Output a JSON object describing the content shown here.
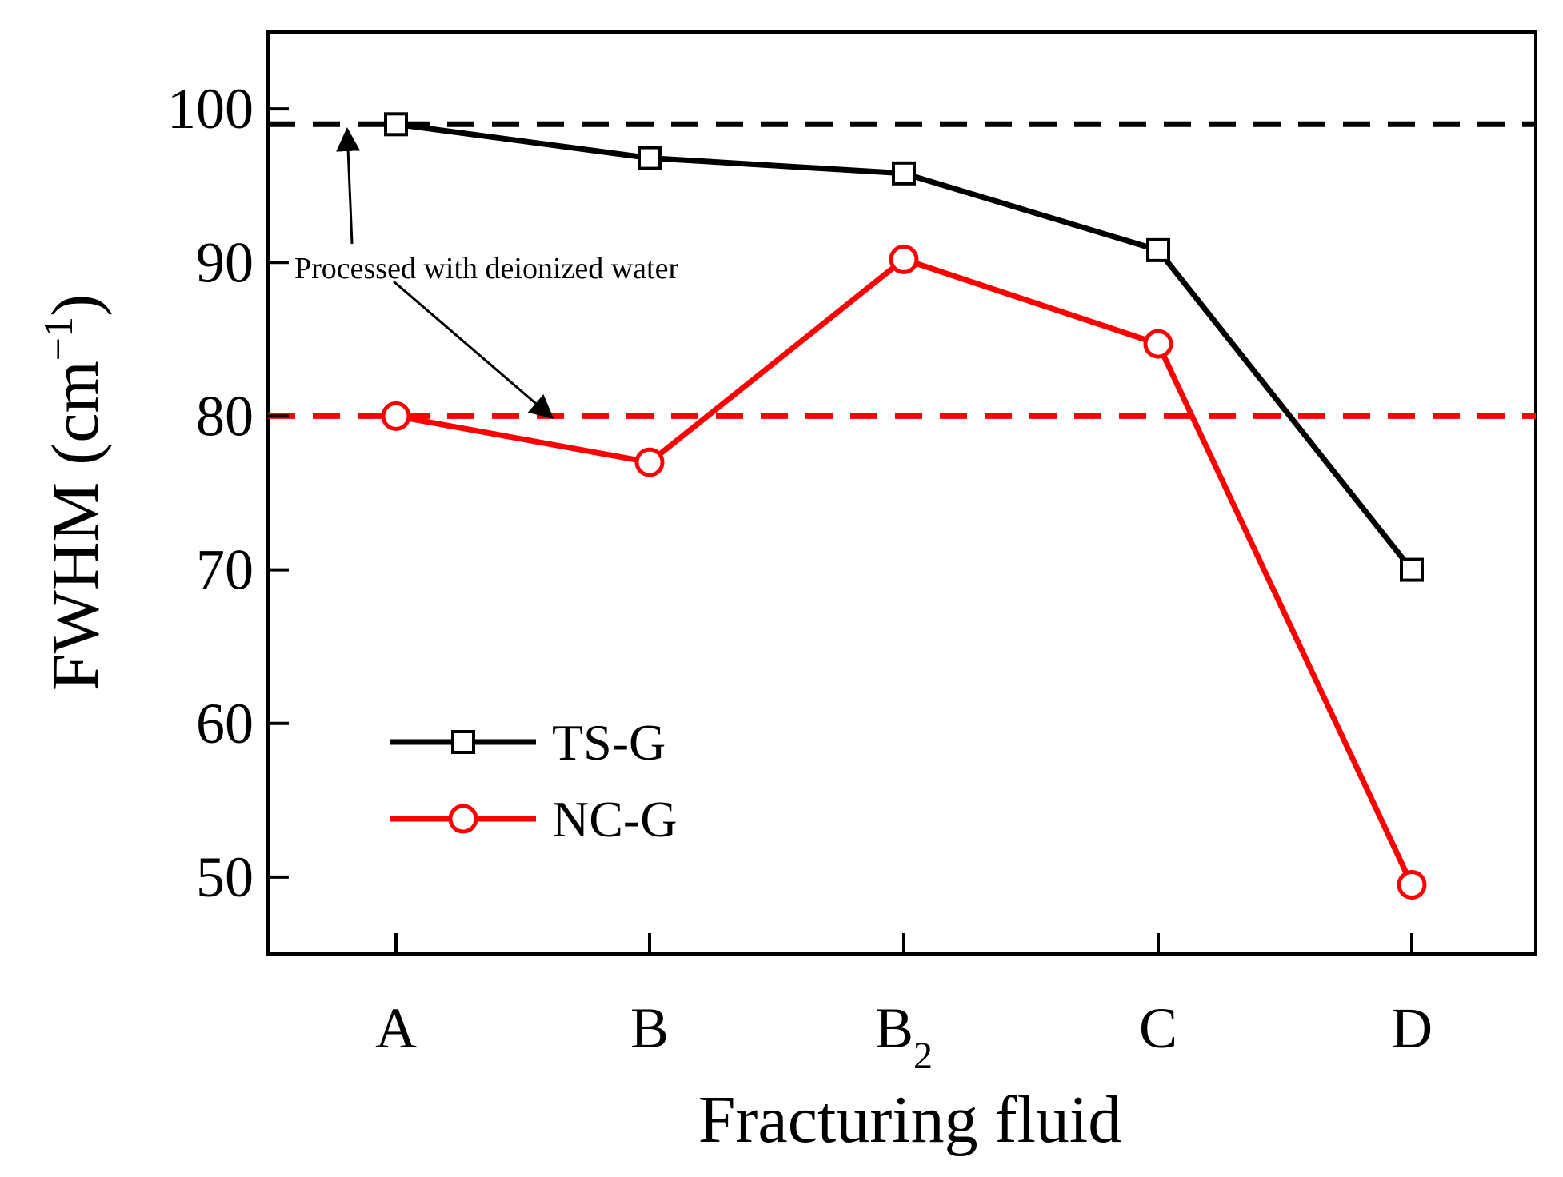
{
  "chart_data": {
    "type": "line",
    "xlabel": "Fracturing fluid",
    "ylabel": "FWHM (cm",
    "ylabel_superscript": "−1",
    "ylabel_suffix": ")",
    "categories": [
      {
        "base": "A",
        "sub": ""
      },
      {
        "base": "B",
        "sub": ""
      },
      {
        "base": "B",
        "sub": "2"
      },
      {
        "base": "C",
        "sub": ""
      },
      {
        "base": "D",
        "sub": ""
      }
    ],
    "ylim": [
      45,
      105
    ],
    "yticks": [
      50,
      60,
      70,
      80,
      90,
      100
    ],
    "series": [
      {
        "name": "TS-G",
        "color": "#000000",
        "marker": "square",
        "values": [
          99,
          96.8,
          95.8,
          90.8,
          70
        ]
      },
      {
        "name": "NC-G",
        "color": "#ff0000",
        "marker": "circle",
        "values": [
          80,
          77,
          90.2,
          84.7,
          49.5
        ]
      }
    ],
    "reference_lines": [
      {
        "series": "TS-G",
        "value": 99,
        "color": "#000000",
        "style": "dashed"
      },
      {
        "series": "NC-G",
        "value": 80,
        "color": "#ff0000",
        "style": "dashed"
      }
    ],
    "annotation": {
      "text": "Processed with deionized water"
    },
    "legend": {
      "position": "lower-left"
    }
  }
}
